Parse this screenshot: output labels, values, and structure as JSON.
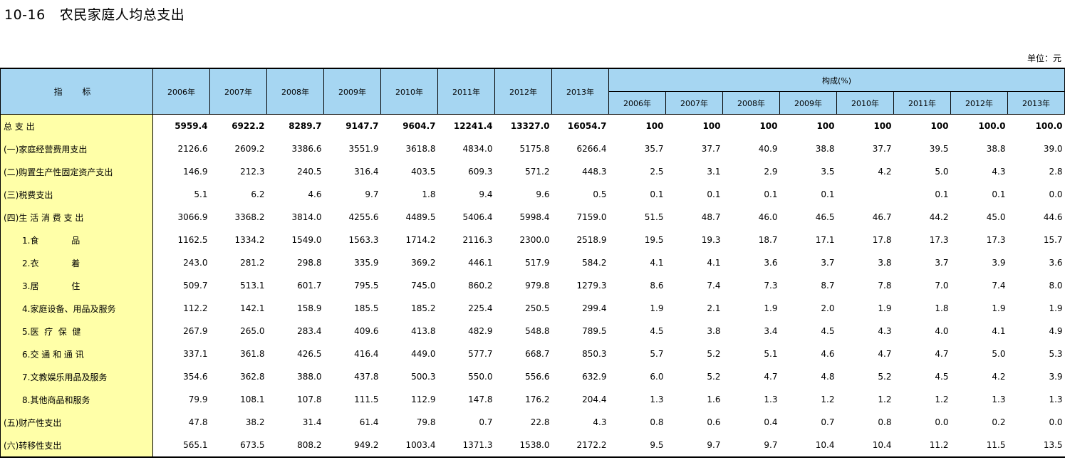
{
  "title": {
    "code": "10-16",
    "text": "农民家庭人均总支出"
  },
  "unit": "单位：元",
  "header": {
    "indicator": "指  标",
    "composition": "构成(%)",
    "years": [
      "2006年",
      "2007年",
      "2008年",
      "2009年",
      "2010年",
      "2011年",
      "2012年",
      "2013年"
    ]
  },
  "rows": [
    {
      "label": "总 支 出",
      "indent": false,
      "values": [
        "5959.4",
        "6922.2",
        "8289.7",
        "9147.7",
        "9604.7",
        "12241.4",
        "13327.0",
        "16054.7"
      ],
      "pct": [
        "100",
        "100",
        "100",
        "100",
        "100",
        "100",
        "100.0",
        "100.0"
      ]
    },
    {
      "label": "(一)家庭经营费用支出",
      "indent": false,
      "values": [
        "2126.6",
        "2609.2",
        "3386.6",
        "3551.9",
        "3618.8",
        "4834.0",
        "5175.8",
        "6266.4"
      ],
      "pct": [
        "35.7",
        "37.7",
        "40.9",
        "38.8",
        "37.7",
        "39.5",
        "38.8",
        "39.0"
      ]
    },
    {
      "label": "(二)购置生产性固定资产支出",
      "indent": false,
      "values": [
        "146.9",
        "212.3",
        "240.5",
        "316.4",
        "403.5",
        "609.3",
        "571.2",
        "448.3"
      ],
      "pct": [
        "2.5",
        "3.1",
        "2.9",
        "3.5",
        "4.2",
        "5.0",
        "4.3",
        "2.8"
      ]
    },
    {
      "label": "(三)税费支出",
      "indent": false,
      "values": [
        "5.1",
        "6.2",
        "4.6",
        "9.7",
        "1.8",
        "9.4",
        "9.6",
        "0.5"
      ],
      "pct": [
        "0.1",
        "0.1",
        "0.1",
        "0.1",
        "",
        "0.1",
        "0.1",
        "0.0"
      ]
    },
    {
      "label": "(四)生 活 消 费 支 出",
      "indent": false,
      "values": [
        "3066.9",
        "3368.2",
        "3814.0",
        "4255.6",
        "4489.5",
        "5406.4",
        "5998.4",
        "7159.0"
      ],
      "pct": [
        "51.5",
        "48.7",
        "46.0",
        "46.5",
        "46.7",
        "44.2",
        "45.0",
        "44.6"
      ]
    },
    {
      "label": "1.食            品",
      "indent": true,
      "values": [
        "1162.5",
        "1334.2",
        "1549.0",
        "1563.3",
        "1714.2",
        "2116.3",
        "2300.0",
        "2518.9"
      ],
      "pct": [
        "19.5",
        "19.3",
        "18.7",
        "17.1",
        "17.8",
        "17.3",
        "17.3",
        "15.7"
      ]
    },
    {
      "label": "2.衣            着",
      "indent": true,
      "values": [
        "243.0",
        "281.2",
        "298.8",
        "335.9",
        "369.2",
        "446.1",
        "517.9",
        "584.2"
      ],
      "pct": [
        "4.1",
        "4.1",
        "3.6",
        "3.7",
        "3.8",
        "3.7",
        "3.9",
        "3.6"
      ]
    },
    {
      "label": "3.居            住",
      "indent": true,
      "values": [
        "509.7",
        "513.1",
        "601.7",
        "795.5",
        "745.0",
        "860.2",
        "979.8",
        "1279.3"
      ],
      "pct": [
        "8.6",
        "7.4",
        "7.3",
        "8.7",
        "7.8",
        "7.0",
        "7.4",
        "8.0"
      ]
    },
    {
      "label": "4.家庭设备、用品及服务",
      "indent": true,
      "values": [
        "112.2",
        "142.1",
        "158.9",
        "185.5",
        "185.2",
        "225.4",
        "250.5",
        "299.4"
      ],
      "pct": [
        "1.9",
        "2.1",
        "1.9",
        "2.0",
        "1.9",
        "1.8",
        "1.9",
        "1.9"
      ]
    },
    {
      "label": "5.医  疗  保  健",
      "indent": true,
      "values": [
        "267.9",
        "265.0",
        "283.4",
        "409.6",
        "413.8",
        "482.9",
        "548.8",
        "789.5"
      ],
      "pct": [
        "4.5",
        "3.8",
        "3.4",
        "4.5",
        "4.3",
        "4.0",
        "4.1",
        "4.9"
      ]
    },
    {
      "label": "6.交 通 和 通 讯",
      "indent": true,
      "values": [
        "337.1",
        "361.8",
        "426.5",
        "416.4",
        "449.0",
        "577.7",
        "668.7",
        "850.3"
      ],
      "pct": [
        "5.7",
        "5.2",
        "5.1",
        "4.6",
        "4.7",
        "4.7",
        "5.0",
        "5.3"
      ]
    },
    {
      "label": "7.文教娱乐用品及服务",
      "indent": true,
      "values": [
        "354.6",
        "362.8",
        "388.0",
        "437.8",
        "500.3",
        "550.0",
        "556.6",
        "632.9"
      ],
      "pct": [
        "6.0",
        "5.2",
        "4.7",
        "4.8",
        "5.2",
        "4.5",
        "4.2",
        "3.9"
      ]
    },
    {
      "label": "8.其他商品和服务",
      "indent": true,
      "values": [
        "79.9",
        "108.1",
        "107.8",
        "111.5",
        "112.9",
        "147.8",
        "176.2",
        "204.4"
      ],
      "pct": [
        "1.3",
        "1.6",
        "1.3",
        "1.2",
        "1.2",
        "1.2",
        "1.3",
        "1.3"
      ]
    },
    {
      "label": "(五)财产性支出",
      "indent": false,
      "values": [
        "47.8",
        "38.2",
        "31.4",
        "61.4",
        "79.8",
        "0.7",
        "22.8",
        "4.3"
      ],
      "pct": [
        "0.8",
        "0.6",
        "0.4",
        "0.7",
        "0.8",
        "0.0",
        "0.2",
        "0.0"
      ]
    },
    {
      "label": "(六)转移性支出",
      "indent": false,
      "values": [
        "565.1",
        "673.5",
        "808.2",
        "949.2",
        "1003.4",
        "1371.3",
        "1538.0",
        "2172.2"
      ],
      "pct": [
        "9.5",
        "9.7",
        "9.7",
        "10.4",
        "10.4",
        "11.2",
        "11.5",
        "13.5"
      ]
    }
  ]
}
